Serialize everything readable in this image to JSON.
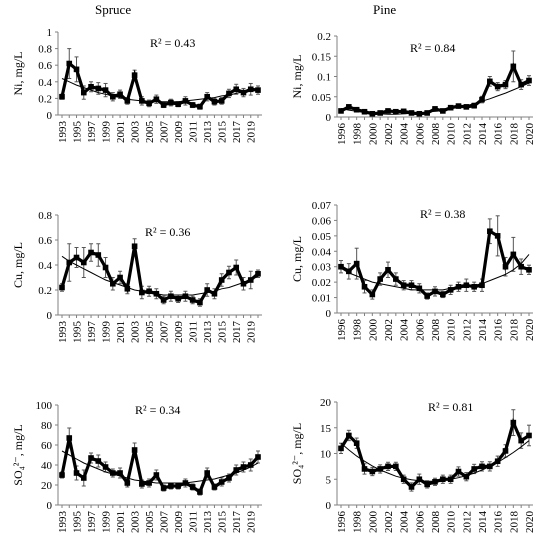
{
  "figure": {
    "col_titles": [
      "Spruce",
      "Pine"
    ]
  },
  "chart_data": [
    {
      "id": "spruce-ni",
      "type": "line",
      "ylabel": "Ni, mg/L",
      "r2": "R² = 0.43",
      "ylim": [
        0,
        1
      ],
      "yticks": [
        0,
        0.2,
        0.4,
        0.6,
        0.8,
        1
      ],
      "ytick_labels": [
        "0",
        "0.2",
        "0.4",
        "0.6",
        "0.8",
        "1"
      ],
      "xticks": [
        "1993",
        "1995",
        "1997",
        "1999",
        "2001",
        "2003",
        "2005",
        "2007",
        "2009",
        "2011",
        "2013",
        "2015",
        "2017",
        "2019"
      ],
      "x": [
        1993,
        1994,
        1995,
        1996,
        1997,
        1998,
        1999,
        2000,
        2001,
        2002,
        2003,
        2004,
        2005,
        2006,
        2007,
        2008,
        2009,
        2010,
        2011,
        2012,
        2013,
        2014,
        2015,
        2016,
        2017,
        2018,
        2019,
        2020
      ],
      "values": [
        0.22,
        0.62,
        0.55,
        0.27,
        0.34,
        0.32,
        0.3,
        0.22,
        0.25,
        0.17,
        0.48,
        0.17,
        0.14,
        0.19,
        0.12,
        0.15,
        0.13,
        0.17,
        0.12,
        0.1,
        0.22,
        0.16,
        0.17,
        0.26,
        0.31,
        0.27,
        0.31,
        0.3
      ],
      "errors": [
        0.03,
        0.18,
        0.15,
        0.08,
        0.06,
        0.07,
        0.08,
        0.05,
        0.05,
        0.04,
        0.06,
        0.05,
        0.04,
        0.05,
        0.03,
        0.04,
        0.03,
        0.05,
        0.03,
        0.03,
        0.05,
        0.04,
        0.04,
        0.05,
        0.06,
        0.05,
        0.07,
        0.05
      ],
      "trend": [
        0.44,
        0.4,
        0.36,
        0.33,
        0.3,
        0.27,
        0.25,
        0.23,
        0.21,
        0.19,
        0.18,
        0.17,
        0.16,
        0.16,
        0.16,
        0.16,
        0.16,
        0.17,
        0.18,
        0.19,
        0.2,
        0.21,
        0.23,
        0.24,
        0.26,
        0.28,
        0.3,
        0.31
      ]
    },
    {
      "id": "pine-ni",
      "type": "line",
      "ylabel": "Ni, mg/L",
      "r2": "R² = 0.84",
      "ylim": [
        0,
        0.2
      ],
      "yticks": [
        0,
        0.05,
        0.1,
        0.15,
        0.2
      ],
      "ytick_labels": [
        "0",
        "0.05",
        "0.1",
        "0.15",
        "0.2"
      ],
      "xticks": [
        "1996",
        "1998",
        "2000",
        "2002",
        "2004",
        "2006",
        "2008",
        "2010",
        "2012",
        "2014",
        "2016",
        "2018",
        "2020"
      ],
      "x": [
        1996,
        1997,
        1998,
        1999,
        2000,
        2001,
        2002,
        2003,
        2004,
        2005,
        2006,
        2007,
        2008,
        2009,
        2010,
        2011,
        2012,
        2013,
        2014,
        2015,
        2016,
        2017,
        2018,
        2019,
        2020
      ],
      "values": [
        0.015,
        0.025,
        0.018,
        0.013,
        0.008,
        0.01,
        0.015,
        0.013,
        0.014,
        0.01,
        0.008,
        0.01,
        0.02,
        0.015,
        0.023,
        0.027,
        0.025,
        0.028,
        0.043,
        0.088,
        0.075,
        0.08,
        0.125,
        0.08,
        0.09
      ],
      "errors": [
        0.004,
        0.005,
        0.004,
        0.003,
        0.003,
        0.003,
        0.004,
        0.003,
        0.003,
        0.003,
        0.003,
        0.003,
        0.005,
        0.004,
        0.005,
        0.005,
        0.005,
        0.006,
        0.008,
        0.012,
        0.01,
        0.01,
        0.038,
        0.012,
        0.012
      ],
      "trend": [
        0.021,
        0.017,
        0.014,
        0.011,
        0.009,
        0.008,
        0.007,
        0.007,
        0.008,
        0.009,
        0.01,
        0.012,
        0.014,
        0.017,
        0.02,
        0.024,
        0.028,
        0.033,
        0.039,
        0.045,
        0.052,
        0.059,
        0.067,
        0.075,
        0.084
      ]
    },
    {
      "id": "spruce-cu",
      "type": "line",
      "ylabel": "Cu, mg/L",
      "r2": "R² = 0.36",
      "ylim": [
        0,
        0.8
      ],
      "yticks": [
        0,
        0.2,
        0.4,
        0.6,
        0.8
      ],
      "ytick_labels": [
        "0",
        "0.2",
        "0.4",
        "0.6",
        "0.8"
      ],
      "xticks": [
        "1993",
        "1995",
        "1997",
        "1999",
        "2001",
        "2003",
        "2005",
        "2007",
        "2009",
        "2011",
        "2013",
        "2015",
        "2017",
        "2019"
      ],
      "x": [
        1993,
        1994,
        1995,
        1996,
        1997,
        1998,
        1999,
        2000,
        2001,
        2002,
        2003,
        2004,
        2005,
        2006,
        2007,
        2008,
        2009,
        2010,
        2011,
        2012,
        2013,
        2014,
        2015,
        2016,
        2017,
        2018,
        2019,
        2020
      ],
      "values": [
        0.22,
        0.42,
        0.46,
        0.42,
        0.5,
        0.48,
        0.38,
        0.25,
        0.3,
        0.21,
        0.55,
        0.18,
        0.19,
        0.17,
        0.12,
        0.15,
        0.13,
        0.15,
        0.12,
        0.1,
        0.2,
        0.17,
        0.28,
        0.34,
        0.38,
        0.25,
        0.28,
        0.33
      ],
      "errors": [
        0.03,
        0.15,
        0.08,
        0.12,
        0.07,
        0.09,
        0.08,
        0.05,
        0.05,
        0.04,
        0.06,
        0.05,
        0.04,
        0.04,
        0.03,
        0.04,
        0.03,
        0.04,
        0.03,
        0.03,
        0.05,
        0.04,
        0.05,
        0.05,
        0.06,
        0.05,
        0.07,
        0.03
      ],
      "trend": [
        0.47,
        0.43,
        0.4,
        0.37,
        0.34,
        0.31,
        0.28,
        0.26,
        0.24,
        0.22,
        0.2,
        0.19,
        0.18,
        0.17,
        0.16,
        0.16,
        0.16,
        0.16,
        0.16,
        0.17,
        0.18,
        0.19,
        0.21,
        0.22,
        0.24,
        0.26,
        0.28,
        0.31
      ]
    },
    {
      "id": "pine-cu",
      "type": "line",
      "ylabel": "Cu, mg/L",
      "r2": "R² = 0.38",
      "ylim": [
        0,
        0.07
      ],
      "yticks": [
        0,
        0.01,
        0.02,
        0.03,
        0.04,
        0.05,
        0.06,
        0.07
      ],
      "ytick_labels": [
        "0",
        "0.01",
        "0.02",
        "0.03",
        "0.04",
        "0.05",
        "0.06",
        "0.07"
      ],
      "xticks": [
        "1996",
        "1998",
        "2000",
        "2002",
        "2004",
        "2006",
        "2008",
        "2010",
        "2012",
        "2014",
        "2016",
        "2018",
        "2020"
      ],
      "x": [
        1996,
        1997,
        1998,
        1999,
        2000,
        2001,
        2002,
        2003,
        2004,
        2005,
        2006,
        2007,
        2008,
        2009,
        2010,
        2011,
        2012,
        2013,
        2014,
        2015,
        2016,
        2017,
        2018,
        2019,
        2020
      ],
      "values": [
        0.03,
        0.027,
        0.032,
        0.017,
        0.012,
        0.022,
        0.028,
        0.022,
        0.018,
        0.018,
        0.016,
        0.011,
        0.014,
        0.012,
        0.015,
        0.017,
        0.018,
        0.017,
        0.018,
        0.053,
        0.05,
        0.03,
        0.038,
        0.03,
        0.028
      ],
      "errors": [
        0.004,
        0.005,
        0.01,
        0.004,
        0.003,
        0.004,
        0.005,
        0.004,
        0.003,
        0.003,
        0.003,
        0.002,
        0.003,
        0.002,
        0.003,
        0.003,
        0.004,
        0.003,
        0.004,
        0.008,
        0.013,
        0.006,
        0.011,
        0.005,
        0.003
      ],
      "trend": [
        0.029,
        0.026,
        0.024,
        0.022,
        0.02,
        0.019,
        0.018,
        0.017,
        0.016,
        0.015,
        0.015,
        0.015,
        0.015,
        0.015,
        0.016,
        0.016,
        0.017,
        0.018,
        0.019,
        0.021,
        0.023,
        0.025,
        0.028,
        0.032,
        0.038
      ]
    },
    {
      "id": "spruce-so4",
      "type": "line",
      "ylabel": "SO₄²⁻, mg/L",
      "r2": "R² = 0.34",
      "ylim": [
        0,
        100
      ],
      "yticks": [
        0,
        20,
        40,
        60,
        80,
        100
      ],
      "ytick_labels": [
        "0",
        "20",
        "40",
        "60",
        "80",
        "100"
      ],
      "xticks": [
        "1993",
        "1995",
        "1997",
        "1999",
        "2001",
        "2003",
        "2005",
        "2007",
        "2009",
        "2011",
        "2013",
        "2015",
        "2017",
        "2019"
      ],
      "x": [
        1993,
        1994,
        1995,
        1996,
        1997,
        1998,
        1999,
        2000,
        2001,
        2002,
        2003,
        2004,
        2005,
        2006,
        2007,
        2008,
        2009,
        2010,
        2011,
        2012,
        2013,
        2014,
        2015,
        2016,
        2017,
        2018,
        2019,
        2020
      ],
      "values": [
        30,
        67,
        32,
        27,
        47,
        44,
        38,
        32,
        32,
        22,
        55,
        21,
        22,
        30,
        17,
        19,
        19,
        22,
        18,
        13,
        32,
        18,
        23,
        27,
        35,
        38,
        40,
        48
      ],
      "errors": [
        3,
        10,
        7,
        8,
        5,
        6,
        5,
        4,
        5,
        4,
        7,
        4,
        4,
        5,
        3,
        3,
        3,
        4,
        3,
        3,
        5,
        3,
        4,
        4,
        5,
        5,
        6,
        6
      ],
      "trend": [
        54,
        50,
        46,
        42,
        39,
        36,
        33,
        31,
        29,
        27,
        25,
        24,
        23,
        22,
        22,
        22,
        22,
        22,
        23,
        24,
        25,
        26,
        28,
        30,
        32,
        35,
        38,
        42
      ]
    },
    {
      "id": "pine-so4",
      "type": "line",
      "ylabel": "SO₄²⁻, mg/L",
      "r2": "R² = 0.81",
      "ylim": [
        0,
        20
      ],
      "yticks": [
        0,
        5,
        10,
        15,
        20
      ],
      "ytick_labels": [
        "0",
        "5",
        "10",
        "15",
        "20"
      ],
      "xticks": [
        "1996",
        "1998",
        "2000",
        "2002",
        "2004",
        "2006",
        "2008",
        "2010",
        "2012",
        "2014",
        "2016",
        "2018",
        "2020"
      ],
      "x": [
        1996,
        1997,
        1998,
        1999,
        2000,
        2001,
        2002,
        2003,
        2004,
        2005,
        2006,
        2007,
        2008,
        2009,
        2010,
        2011,
        2012,
        2013,
        2014,
        2015,
        2016,
        2017,
        2018,
        2019,
        2020
      ],
      "values": [
        11,
        13.5,
        12,
        7,
        6.5,
        7,
        7.5,
        7.5,
        5,
        3.5,
        5,
        4,
        4.5,
        5,
        5,
        6.5,
        5.5,
        7,
        7.5,
        7.5,
        8.5,
        10.5,
        16,
        12.5,
        13.5
      ],
      "errors": [
        1.0,
        1.0,
        1.0,
        1.0,
        0.8,
        0.8,
        0.8,
        0.8,
        0.8,
        0.8,
        1.0,
        0.7,
        0.7,
        0.8,
        0.8,
        0.9,
        0.8,
        0.9,
        0.9,
        0.9,
        1.0,
        1.2,
        2.5,
        1.5,
        2.0
      ],
      "trend": [
        12.0,
        10.7,
        9.5,
        8.5,
        7.6,
        6.8,
        6.2,
        5.6,
        5.2,
        4.9,
        4.7,
        4.6,
        4.6,
        4.8,
        5.0,
        5.3,
        5.7,
        6.2,
        6.8,
        7.5,
        8.3,
        9.2,
        10.2,
        11.3,
        12.5
      ]
    }
  ]
}
